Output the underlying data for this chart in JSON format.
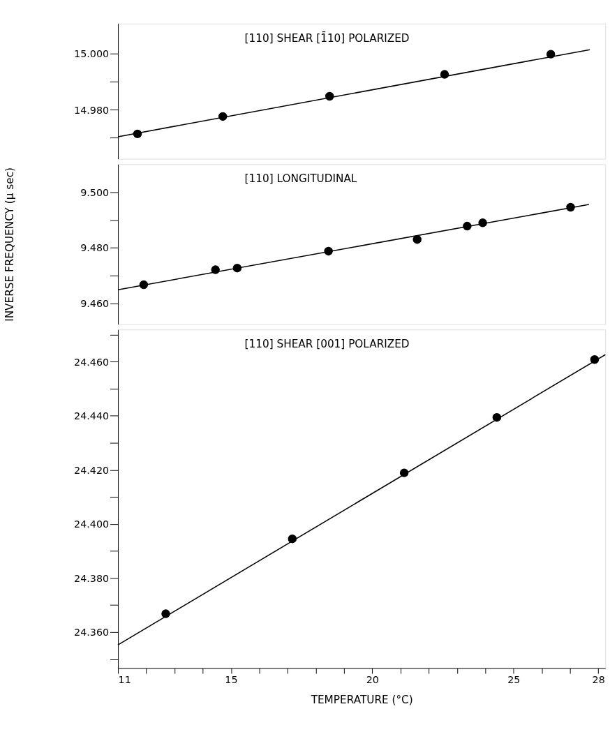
{
  "chart_data": [
    {
      "type": "scatter",
      "annotations": [
        "[110]   SHEAR   [1̄10]   POLARIZED"
      ],
      "xlim": [
        11,
        28.25
      ],
      "ylim": [
        14.9625,
        15.0107
      ],
      "yticks": [
        {
          "value": 14.97,
          "label": null
        },
        {
          "value": 14.98,
          "label": "14.980"
        },
        {
          "value": 14.99,
          "label": null
        },
        {
          "value": 15.0,
          "label": "15.000"
        }
      ],
      "tick_labels": "y",
      "grid": false,
      "series": [
        {
          "color": "#000000",
          "marker": "circle",
          "x": [
            11.69,
            14.71,
            18.49,
            22.56,
            26.32
          ],
          "values": [
            14.9714,
            14.9776,
            14.9848,
            14.9926,
            14.9998
          ]
        },
        {
          "type": "line",
          "color": "#000000",
          "line_style": "solid",
          "x": [
            11,
            27.7
          ],
          "values": [
            14.9704,
            15.0014
          ]
        }
      ]
    },
    {
      "type": "scatter",
      "ylabel": "INVERSE FREQUENCY (μ sec)",
      "annotations": [
        "[110]   LONGITUDINAL"
      ],
      "xlim": [
        11,
        28.25
      ],
      "ylim": [
        9.4525,
        9.5101
      ],
      "yticks": [
        {
          "value": 9.46,
          "label": "9.460"
        },
        {
          "value": 9.47,
          "label": null
        },
        {
          "value": 9.48,
          "label": "9.480"
        },
        {
          "value": 9.49,
          "label": null
        },
        {
          "value": 9.5,
          "label": "9.500"
        }
      ],
      "tick_labels": "y",
      "grid": false,
      "series": [
        {
          "color": "#000000",
          "marker": "circle",
          "x": [
            11.91,
            14.45,
            15.22,
            18.45,
            21.59,
            23.36,
            23.91,
            27.02
          ],
          "values": [
            9.4667,
            9.4721,
            9.4727,
            9.4788,
            9.483,
            9.4878,
            9.489,
            9.4946
          ]
        },
        {
          "type": "line",
          "color": "#000000",
          "line_style": "solid",
          "x": [
            11,
            27.67
          ],
          "values": [
            9.4649,
            9.4956
          ]
        }
      ]
    },
    {
      "type": "scatter",
      "xlabel": "TEMPERATURE (°C)",
      "annotations": [
        "[110]   SHEAR   [001]   POLARIZED"
      ],
      "xlim": [
        11,
        28.25
      ],
      "ylim": [
        24.3467,
        24.4719
      ],
      "xticks": [
        {
          "value": 11,
          "label": "11"
        },
        {
          "value": 12,
          "label": null
        },
        {
          "value": 13,
          "label": null
        },
        {
          "value": 14,
          "label": null
        },
        {
          "value": 15,
          "label": "15"
        },
        {
          "value": 16,
          "label": null
        },
        {
          "value": 17,
          "label": null
        },
        {
          "value": 18,
          "label": null
        },
        {
          "value": 19,
          "label": null
        },
        {
          "value": 20,
          "label": "20"
        },
        {
          "value": 21,
          "label": null
        },
        {
          "value": 22,
          "label": null
        },
        {
          "value": 23,
          "label": null
        },
        {
          "value": 24,
          "label": null
        },
        {
          "value": 25,
          "label": "25"
        },
        {
          "value": 26,
          "label": null
        },
        {
          "value": 27,
          "label": null
        },
        {
          "value": 28,
          "label": "28"
        }
      ],
      "yticks": [
        {
          "value": 24.35,
          "label": null
        },
        {
          "value": 24.36,
          "label": "24.360"
        },
        {
          "value": 24.37,
          "label": null
        },
        {
          "value": 24.38,
          "label": "24.380"
        },
        {
          "value": 24.39,
          "label": null
        },
        {
          "value": 24.4,
          "label": "24.400"
        },
        {
          "value": 24.41,
          "label": null
        },
        {
          "value": 24.42,
          "label": "24.420"
        },
        {
          "value": 24.43,
          "label": null
        },
        {
          "value": 24.44,
          "label": "24.440"
        },
        {
          "value": 24.45,
          "label": null
        },
        {
          "value": 24.46,
          "label": "24.460"
        },
        {
          "value": 24.47,
          "label": null
        }
      ],
      "grid": false,
      "series": [
        {
          "color": "#000000",
          "marker": "circle",
          "x": [
            12.69,
            17.17,
            21.13,
            24.41,
            27.87
          ],
          "values": [
            24.3668,
            24.3945,
            24.4189,
            24.4394,
            24.4608
          ]
        },
        {
          "type": "line",
          "color": "#000000",
          "line_style": "solid",
          "x": [
            11,
            28.25
          ],
          "values": [
            24.3553,
            24.4626
          ]
        }
      ]
    }
  ]
}
